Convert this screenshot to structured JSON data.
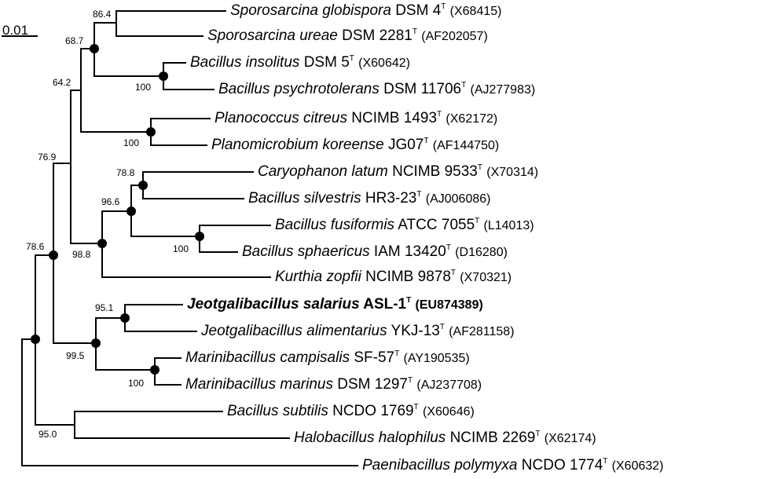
{
  "scale_bar": {
    "label": "0.01"
  },
  "taxa": [
    {
      "id": "t1",
      "species": "Sporosarcina globispora",
      "strain": "DSM 4",
      "sup": "T",
      "accession": "(X68415)",
      "bold": false
    },
    {
      "id": "t2",
      "species": "Sporosarcina ureae",
      "strain": "DSM 2281",
      "sup": "T",
      "accession": "(AF202057)",
      "bold": false
    },
    {
      "id": "t3",
      "species": "Bacillus insolitus",
      "strain": "DSM 5",
      "sup": "T",
      "accession": "(X60642)",
      "bold": false
    },
    {
      "id": "t4",
      "species": "Bacillus psychrotolerans",
      "strain": "DSM 11706",
      "sup": "T",
      "accession": "(AJ277983)",
      "bold": false
    },
    {
      "id": "t5",
      "species": "Planococcus citreus",
      "strain": "NCIMB 1493",
      "sup": "T",
      "accession": "(X62172)",
      "bold": false
    },
    {
      "id": "t6",
      "species": "Planomicrobium koreense",
      "strain": "JG07",
      "sup": "T",
      "accession": "(AF144750)",
      "bold": false
    },
    {
      "id": "t7",
      "species": "Caryophanon latum",
      "strain": "NCIMB 9533",
      "sup": "T",
      "accession": "(X70314)",
      "bold": false
    },
    {
      "id": "t8",
      "species": "Bacillus silvestris",
      "strain": "HR3-23",
      "sup": "T",
      "accession": "(AJ006086)",
      "bold": false
    },
    {
      "id": "t9",
      "species": "Bacillus fusiformis",
      "strain": "ATCC 7055",
      "sup": "T",
      "accession": "(L14013)",
      "bold": false
    },
    {
      "id": "t10",
      "species": "Bacillus sphaericus",
      "strain": "IAM 13420",
      "sup": "T",
      "accession": "(D16280)",
      "bold": false
    },
    {
      "id": "t11",
      "species": "Kurthia zopfii",
      "strain": "NCIMB 9878",
      "sup": "T",
      "accession": "(X70321)",
      "bold": false
    },
    {
      "id": "t12",
      "species": "Jeotgalibacillus salarius",
      "strain": "ASL-1",
      "sup": "T",
      "accession": "(EU874389)",
      "bold": true
    },
    {
      "id": "t13",
      "species": "Jeotgalibacillus alimentarius",
      "strain": "YKJ-13",
      "sup": "T",
      "accession": "(AF281158)",
      "bold": false
    },
    {
      "id": "t14",
      "species": "Marinibacillus campisalis",
      "strain": "SF-57",
      "sup": "T",
      "accession": "(AY190535)",
      "bold": false
    },
    {
      "id": "t15",
      "species": "Marinibacillus marinus",
      "strain": "DSM 1297",
      "sup": "T",
      "accession": "(AJ237708)",
      "bold": false
    },
    {
      "id": "t16",
      "species": "Bacillus subtilis",
      "strain": "NCDO 1769",
      "sup": "T",
      "accession": "(X60646)",
      "bold": false
    },
    {
      "id": "t17",
      "species": "Halobacillus halophilus",
      "strain": "NCIMB 2269",
      "sup": "T",
      "accession": "(X62174)",
      "bold": false
    },
    {
      "id": "t18",
      "species": "Paenibacillus polymyxa",
      "strain": "NCDO 1774",
      "sup": "T",
      "accession": "(X60632)",
      "bold": false
    }
  ],
  "bootstrap_values": {
    "b1": "86.4",
    "b2": "68.7",
    "b3": "64.2",
    "b4": "100",
    "b5": "100",
    "b6": "76.9",
    "b7": "78.8",
    "b8": "96.6",
    "b9": "98.8",
    "b10": "100",
    "b11": "78.6",
    "b12": "95.1",
    "b13": "99.5",
    "b14": "100",
    "b15": "95.0"
  }
}
